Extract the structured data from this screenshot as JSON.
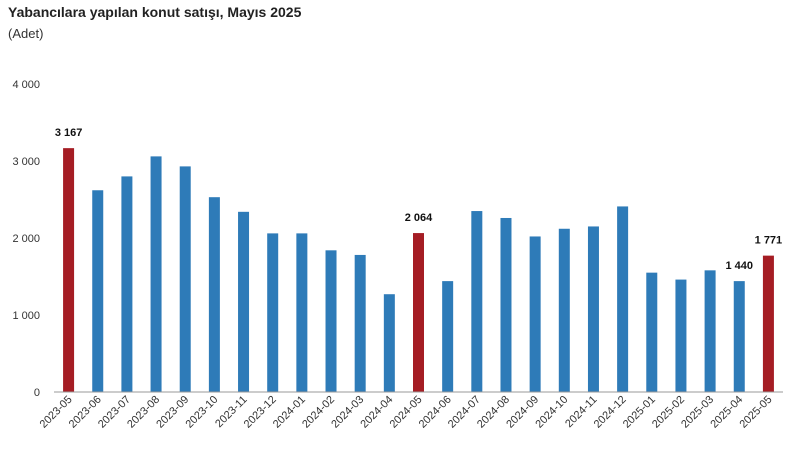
{
  "chart_data": {
    "type": "bar",
    "title": "Yabancılara yapılan konut satışı, Mayıs 2025",
    "subtitle": "(Adet)",
    "xlabel": "",
    "ylabel": "",
    "ylim": [
      0,
      4000
    ],
    "yticks": [
      0,
      1000,
      2000,
      3000,
      4000
    ],
    "ytick_labels": [
      "0",
      "1 000",
      "2 000",
      "3 000",
      "4 000"
    ],
    "grid": false,
    "categories": [
      "2023-05",
      "2023-06",
      "2023-07",
      "2023-08",
      "2023-09",
      "2023-10",
      "2023-11",
      "2023-12",
      "2024-01",
      "2024-02",
      "2024-03",
      "2024-04",
      "2024-05",
      "2024-06",
      "2024-07",
      "2024-08",
      "2024-09",
      "2024-10",
      "2024-11",
      "2024-12",
      "2025-01",
      "2025-02",
      "2025-03",
      "2025-04",
      "2025-05"
    ],
    "values": [
      3167,
      2620,
      2800,
      3060,
      2930,
      2530,
      2340,
      2060,
      2060,
      1840,
      1780,
      1270,
      2064,
      1440,
      2350,
      2260,
      2020,
      2120,
      2150,
      2410,
      1550,
      1460,
      1580,
      1440,
      1771
    ],
    "highlight_indices": [
      0,
      12,
      24
    ],
    "data_labels": [
      {
        "index": 0,
        "text": "3 167"
      },
      {
        "index": 12,
        "text": "2 064"
      },
      {
        "index": 23,
        "text": "1 440"
      },
      {
        "index": 24,
        "text": "1 771"
      }
    ],
    "colors": {
      "bar": "#2e7bb8",
      "highlight": "#a51d24",
      "axis": "#999999"
    }
  }
}
